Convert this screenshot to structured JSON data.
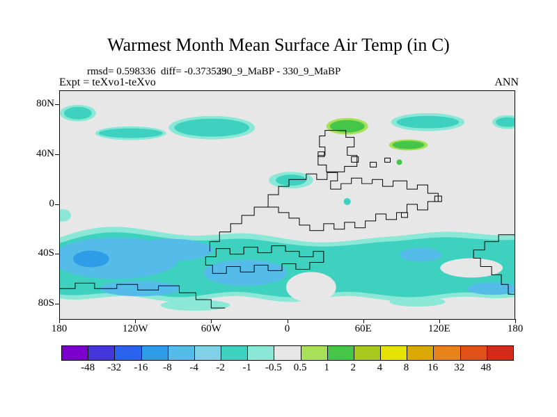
{
  "page": {
    "background": "#ffffff"
  },
  "header": {
    "title": "Warmest Month Mean Surface Air Temp (in C)",
    "stats_line": "rmsd= 0.598336  diff= -0.373529",
    "run_label": "330_9_MaBP - 330_9_MaBP",
    "experiment_label": "Expt = teXvo1-teXvo",
    "season_label": "ANN"
  },
  "chart_data": {
    "type": "heatmap",
    "title": "Warmest Month Mean Surface Air Temp (in C)",
    "statistics": {
      "rmsd": 0.598336,
      "diff": -0.373529
    },
    "experiment": "teXvo1-teXvo",
    "comparison": "330_9_MaBP - 330_9_MaBP",
    "season": "ANN",
    "units": "C",
    "x_axis": {
      "ticks": [
        "180",
        "120W",
        "60W",
        "0",
        "60E",
        "120E",
        "180"
      ],
      "range": [
        -180,
        180
      ]
    },
    "y_axis": {
      "ticks": [
        "80N",
        "40N",
        "0",
        "40S",
        "80S"
      ],
      "range": [
        -90,
        90
      ]
    },
    "colorbar": {
      "levels": [
        "-48",
        "-32",
        "-16",
        "-8",
        "-4",
        "-2",
        "-1",
        "-0.5",
        "0.5",
        "1",
        "2",
        "4",
        "8",
        "16",
        "32",
        "48"
      ],
      "colors": [
        "#7b00cc",
        "#4438dd",
        "#2a64ee",
        "#2f9ce8",
        "#55bbe8",
        "#80d0e8",
        "#3fd1c0",
        "#8ce8d6",
        "#e7e7e7",
        "#a8e058",
        "#46c648",
        "#a8c81e",
        "#e6e300",
        "#d9a900",
        "#e8821a",
        "#e0521a",
        "#d42a1a"
      ]
    },
    "map_pattern": {
      "dominant": "near-zero difference (-0.5 to 0.5 C, light gray) over most of the globe",
      "southern_band": "continuous cyan band of -0.5 to -2 C across roughly 30S-75S with blue cores of -2 to -4 C, strongest west of 60W",
      "northern_patches": "scattered cyan patches of -0.5 to -2 C near 55N-80N (around 100W-40W and 130E-180) and a small cyan patch near 20N, 10W-15E",
      "positive_patches": "small green patches of +0.5 to +2 C near 60N 30E-60E and near 48N 80E-110E",
      "contours": "black stepped outline contours overlaid on the shaded field"
    }
  }
}
